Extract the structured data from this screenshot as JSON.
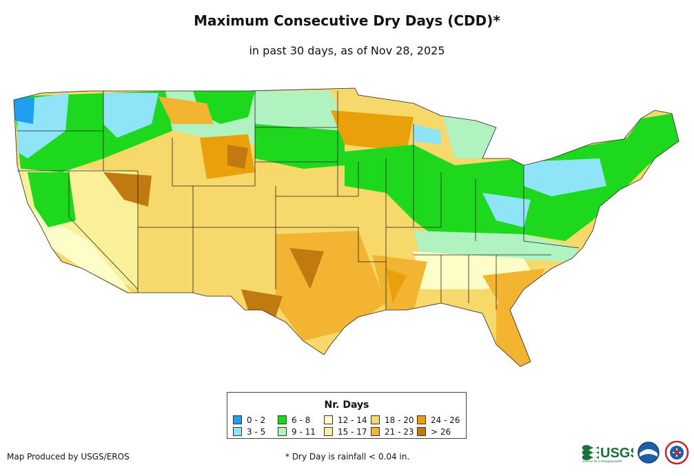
{
  "title": "Maximum Consecutive Dry Days (CDD)*",
  "subtitle": "in past 30 days, as of Nov 28, 2025",
  "legend": {
    "title": "Nr. Days",
    "items": [
      {
        "label": "0 - 2",
        "color": "#1f9ef0"
      },
      {
        "label": "3 - 5",
        "color": "#8fe4f8"
      },
      {
        "label": "6 - 8",
        "color": "#1ed81e"
      },
      {
        "label": "9 - 11",
        "color": "#b0f2c0"
      },
      {
        "label": "12 - 14",
        "color": "#fdfdc8"
      },
      {
        "label": "15 - 17",
        "color": "#fbf09a"
      },
      {
        "label": "18 - 20",
        "color": "#f7d86a"
      },
      {
        "label": "21 - 23",
        "color": "#f2b431"
      },
      {
        "label": "24 - 26",
        "color": "#e9a00a"
      },
      {
        "label": "> 26",
        "color": "#c07a10"
      }
    ]
  },
  "credit": "Map Produced by USGS/EROS",
  "footnote": "* Dry Day is rainfall < 0.04 in.",
  "logos": {
    "usgs": "USGS",
    "usgs_tagline": "science for a changing world",
    "noaa": "noaa",
    "nws": "NWS"
  }
}
